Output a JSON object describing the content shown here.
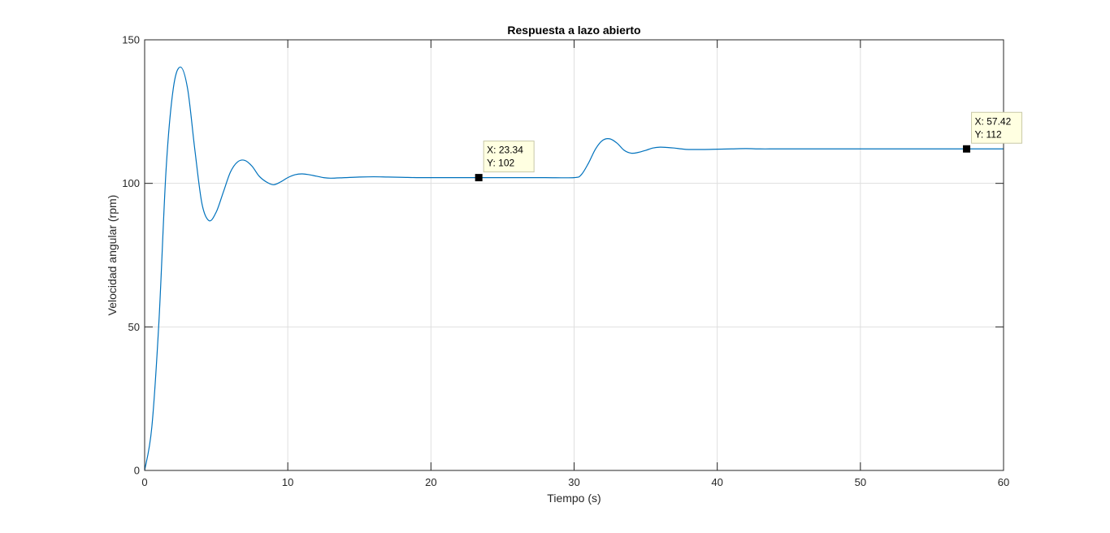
{
  "chart_data": {
    "type": "line",
    "title": "Respuesta a lazo abierto",
    "xlabel": "Tiempo (s)",
    "ylabel": "Velocidad angular (rpm)",
    "xlim": [
      0,
      60
    ],
    "ylim": [
      0,
      150
    ],
    "xticks": [
      0,
      10,
      20,
      30,
      40,
      50,
      60
    ],
    "yticks": [
      0,
      50,
      100,
      150
    ],
    "xtick_labels": [
      "0",
      "10",
      "20",
      "30",
      "40",
      "50",
      "60"
    ],
    "ytick_labels": [
      "0",
      "50",
      "100",
      "150"
    ],
    "grid": true,
    "series": [
      {
        "color": "#0072bd",
        "x": [
          0,
          0.5,
          1.0,
          1.5,
          2.0,
          2.5,
          3.0,
          3.5,
          4.0,
          4.5,
          5.0,
          5.5,
          6.0,
          6.5,
          7.0,
          7.5,
          8.0,
          8.5,
          9.0,
          9.5,
          10.0,
          10.5,
          11.0,
          11.5,
          12.0,
          12.5,
          13.0,
          14.0,
          15.0,
          16.0,
          17.0,
          18.0,
          19.0,
          20.0,
          22.0,
          24.0,
          26.0,
          28.0,
          30.0,
          30.5,
          31.0,
          31.5,
          32.0,
          32.5,
          33.0,
          33.5,
          34.0,
          34.5,
          35.0,
          35.5,
          36.0,
          36.5,
          37.0,
          37.5,
          38.0,
          39.0,
          40.0,
          41.0,
          42.0,
          43.0,
          44.0,
          45.0,
          50.0,
          55.0,
          57.42,
          60.0
        ],
        "y": [
          0,
          15,
          52,
          105,
          133,
          140.5,
          133,
          112,
          93,
          87,
          90,
          97,
          104,
          107.5,
          108,
          106,
          102.5,
          100.5,
          99.5,
          100.5,
          102,
          103,
          103.3,
          103,
          102.5,
          102,
          101.8,
          102,
          102.2,
          102.3,
          102.2,
          102.1,
          102,
          102,
          102,
          102,
          102,
          102,
          102,
          103,
          107,
          112,
          115,
          115.5,
          114,
          111.5,
          110.5,
          110.8,
          111.5,
          112.3,
          112.6,
          112.5,
          112.3,
          112,
          111.8,
          111.8,
          111.9,
          112,
          112.1,
          112,
          112,
          112,
          112,
          112,
          112,
          112
        ]
      }
    ],
    "annotations": [
      {
        "x": 23.34,
        "y": 102,
        "label_x": "X: 23.34",
        "label_y": "Y: 102"
      },
      {
        "x": 57.42,
        "y": 112,
        "label_x": "X: 57.42",
        "label_y": "Y: 112"
      }
    ]
  }
}
